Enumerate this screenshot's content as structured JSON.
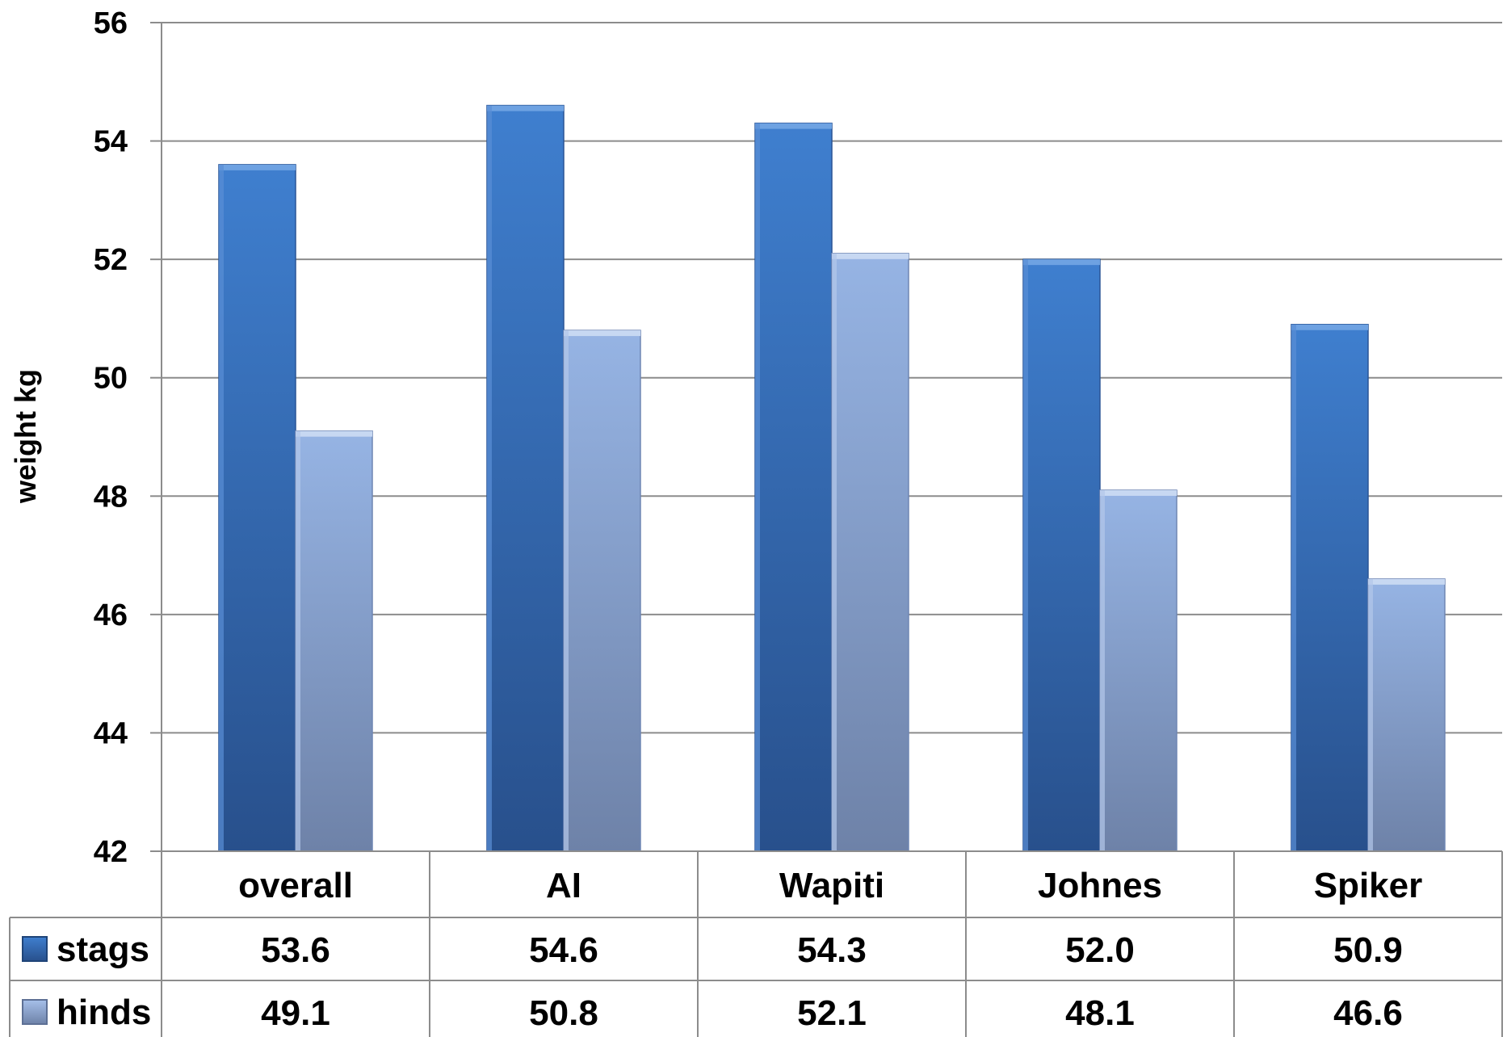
{
  "chart_data": {
    "type": "bar",
    "title": "",
    "xlabel": "",
    "ylabel": "weight kg",
    "ylim": [
      42,
      56
    ],
    "yticks": [
      42,
      44,
      46,
      48,
      50,
      52,
      54,
      56
    ],
    "grid": true,
    "legend": "data-table-left",
    "categories": [
      "overall",
      "AI",
      "Wapiti",
      "Johnes",
      "Spiker"
    ],
    "series": [
      {
        "name": "stags",
        "color": "#3a72bd",
        "values": [
          53.6,
          54.6,
          54.3,
          52.0,
          50.9
        ],
        "display": [
          "53.6",
          "54.6",
          "54.3",
          "52.0",
          "50.9"
        ]
      },
      {
        "name": "hinds",
        "color": "#8ea9d8",
        "values": [
          49.1,
          50.8,
          52.1,
          48.1,
          46.6
        ],
        "display": [
          "49.1",
          "50.8",
          "52.1",
          "48.1",
          "46.6"
        ]
      }
    ]
  }
}
